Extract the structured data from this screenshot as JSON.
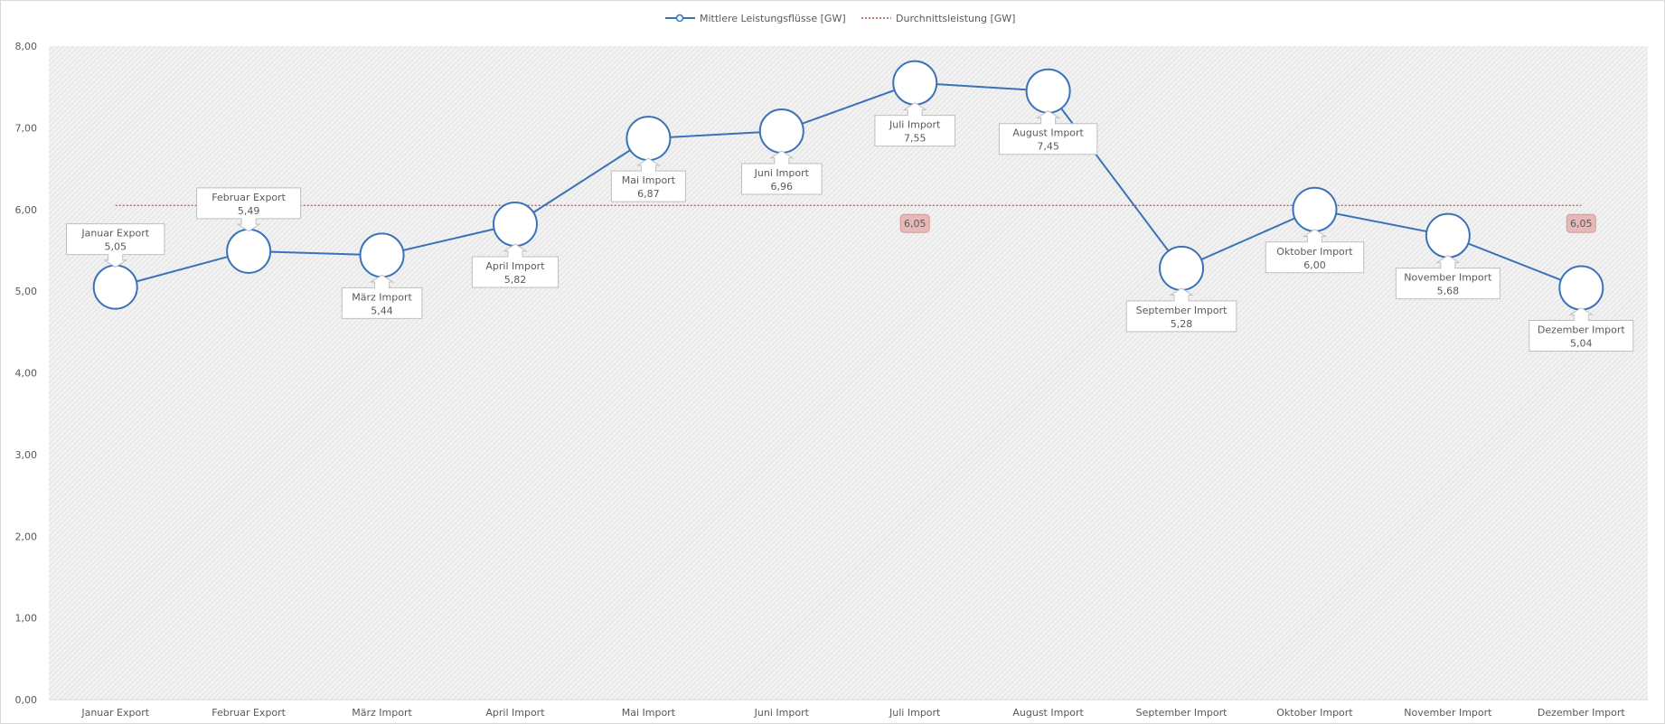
{
  "chart_data": {
    "type": "line",
    "categories": [
      "Januar Export",
      "Februar Export",
      "März Import",
      "April Import",
      "Mai Import",
      "Juni Import",
      "Juli Import",
      "August Import",
      "September Import",
      "Oktober Import",
      "November Import",
      "Dezember Import"
    ],
    "series": [
      {
        "name": "Mittlere Leistungsflüsse [GW]",
        "values": [
          5.05,
          5.49,
          5.44,
          5.82,
          6.87,
          6.96,
          7.55,
          7.45,
          5.28,
          6.0,
          5.68,
          5.04
        ],
        "value_labels": [
          "5,05",
          "5,49",
          "5,44",
          "5,82",
          "6,87",
          "6,96",
          "7,55",
          "7,45",
          "5,28",
          "6,00",
          "5,68",
          "5,04"
        ],
        "callout_labels": [
          "Januar  Export",
          "Februar  Export",
          "März Import",
          "April Import",
          "Mai Import",
          "Juni Import",
          "Juli Import",
          "August  Import",
          "September Import",
          "Oktober Import",
          "November Import",
          "Dezember Import"
        ],
        "label_position": [
          "above",
          "above",
          "below",
          "below",
          "below",
          "below",
          "below",
          "below",
          "below",
          "below",
          "below",
          "below"
        ],
        "color": "#3a72b8"
      },
      {
        "name": "Durchnittsleistung [GW]",
        "value": 6.05,
        "point_labels": [
          {
            "category_index": 6,
            "text": "6,05"
          },
          {
            "category_index": 11,
            "text": "6,05"
          }
        ],
        "color": "#c0504d"
      }
    ],
    "ylim": [
      0,
      8
    ],
    "yticks": [
      0,
      1,
      2,
      3,
      4,
      5,
      6,
      7,
      8
    ],
    "ytick_labels": [
      "0,00",
      "1,00",
      "2,00",
      "3,00",
      "4,00",
      "5,00",
      "6,00",
      "7,00",
      "8,00"
    ],
    "title": "",
    "xlabel": "",
    "ylabel": "",
    "legend_position": "top-center",
    "grid": false,
    "plot_background": "hatched-gray"
  }
}
